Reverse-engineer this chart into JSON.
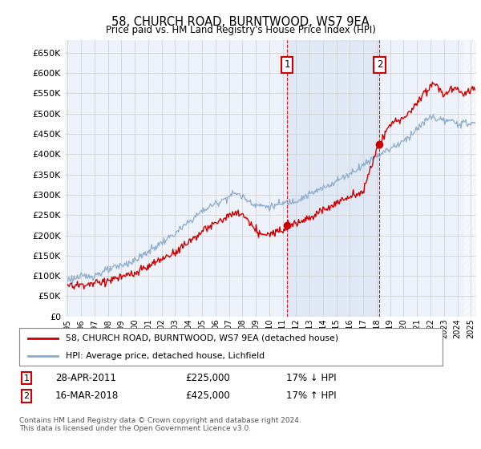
{
  "title": "58, CHURCH ROAD, BURNTWOOD, WS7 9EA",
  "subtitle": "Price paid vs. HM Land Registry's House Price Index (HPI)",
  "legend_label_red": "58, CHURCH ROAD, BURNTWOOD, WS7 9EA (detached house)",
  "legend_label_blue": "HPI: Average price, detached house, Lichfield",
  "transaction1_date": "28-APR-2011",
  "transaction1_price": "£225,000",
  "transaction1_hpi": "17% ↓ HPI",
  "transaction1_year": 2011.32,
  "transaction1_value": 225000,
  "transaction2_date": "16-MAR-2018",
  "transaction2_price": "£425,000",
  "transaction2_hpi": "17% ↑ HPI",
  "transaction2_year": 2018.21,
  "transaction2_value": 425000,
  "footer": "Contains HM Land Registry data © Crown copyright and database right 2024.\nThis data is licensed under the Open Government Licence v3.0.",
  "ylim": [
    0,
    680000
  ],
  "yticks": [
    0,
    50000,
    100000,
    150000,
    200000,
    250000,
    300000,
    350000,
    400000,
    450000,
    500000,
    550000,
    600000,
    650000
  ],
  "xlim_start": 1994.8,
  "xlim_end": 2025.4,
  "color_red": "#cc0000",
  "color_blue": "#88aacc",
  "color_background_chart": "#eef2fa",
  "color_grid": "#cccccc",
  "color_shade_between": "#d8e8f8"
}
